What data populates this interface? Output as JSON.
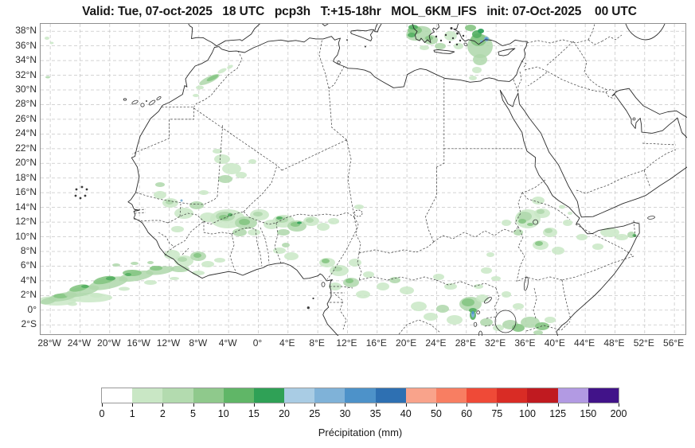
{
  "title": "Valid: Tue, 07-oct-2025   18 UTC   pcp3h   T:+15-18hr   MOL_6KM_IFS   init: 07-Oct-2025    00 UTC",
  "axes": {
    "x_ticks": [
      "28°W",
      "24°W",
      "20°W",
      "16°W",
      "12°W",
      "8°W",
      "4°W",
      "0°",
      "4°E",
      "8°E",
      "12°E",
      "16°E",
      "20°E",
      "24°E",
      "28°E",
      "32°E",
      "36°E",
      "40°E",
      "44°E",
      "48°E",
      "52°E",
      "56°E"
    ],
    "y_ticks": [
      "38°N",
      "36°N",
      "34°N",
      "32°N",
      "30°N",
      "28°N",
      "26°N",
      "24°N",
      "22°N",
      "20°N",
      "18°N",
      "16°N",
      "14°N",
      "12°N",
      "10°N",
      "8°N",
      "6°N",
      "4°N",
      "2°N",
      "0°",
      "2°S"
    ]
  },
  "colorbar": {
    "label": "Précipitation (mm)",
    "levels": [
      "0",
      "1",
      "2",
      "5",
      "10",
      "15",
      "20",
      "25",
      "30",
      "35",
      "40",
      "50",
      "60",
      "75",
      "100",
      "125",
      "150",
      "200"
    ],
    "colors": [
      "#ffffff",
      "#c9e7c5",
      "#b3dbaf",
      "#8fc98c",
      "#60b667",
      "#2fa156",
      "#a9cce4",
      "#7fb2d8",
      "#4d92c9",
      "#2e70b2",
      "#f9a38b",
      "#f87e62",
      "#ef4a37",
      "#d92c25",
      "#c01a20",
      "#b29ae3",
      "#411389"
    ]
  }
}
